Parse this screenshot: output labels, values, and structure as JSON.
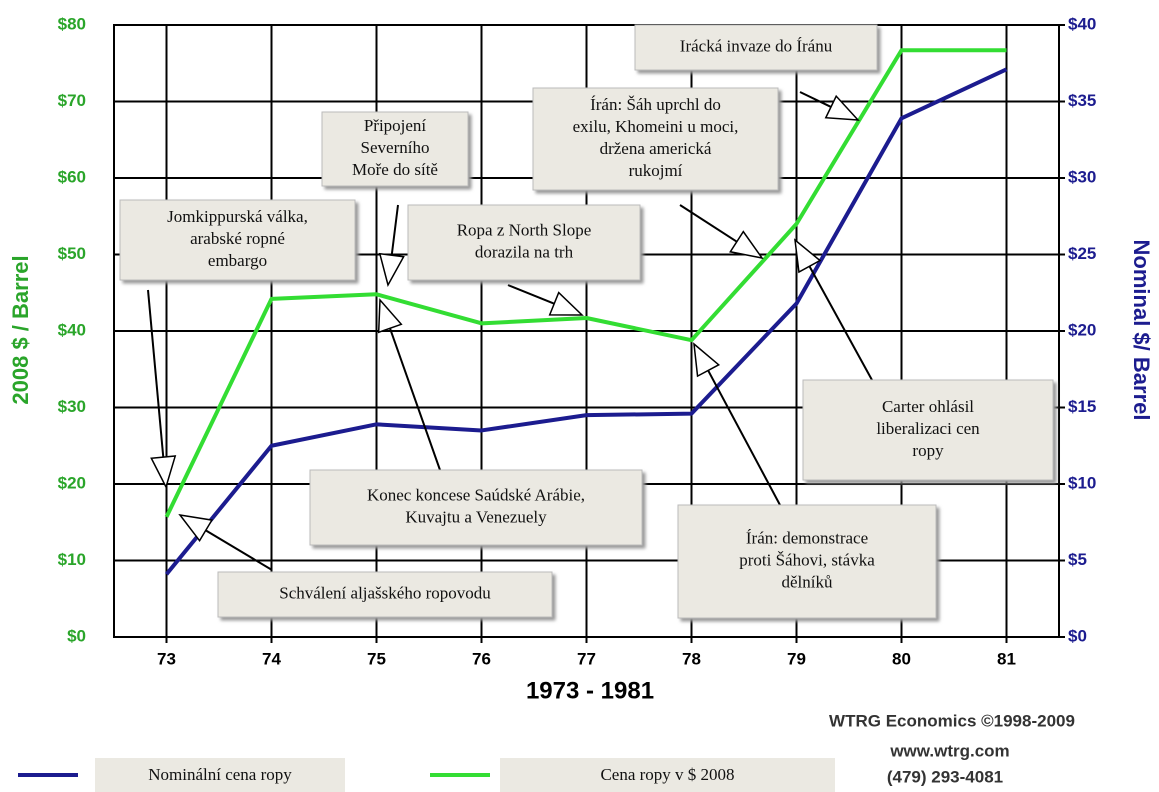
{
  "chart_data": {
    "type": "line",
    "x": [
      73,
      74,
      75,
      76,
      77,
      78,
      79,
      80,
      81
    ],
    "xlim": [
      72.5,
      81.5
    ],
    "xticks": [
      73,
      74,
      75,
      76,
      77,
      78,
      79,
      80,
      81
    ],
    "xlabel": "1973 - 1981",
    "ylabel": "2008 $ / Barrel",
    "y2label": "Nominal $/ Barrel",
    "ylim": [
      0,
      80
    ],
    "yticks": [
      {
        "value": 0,
        "label": "$0"
      },
      {
        "value": 10,
        "label": "$10"
      },
      {
        "value": 20,
        "label": "$20"
      },
      {
        "value": 30,
        "label": "$30"
      },
      {
        "value": 40,
        "label": "$40"
      },
      {
        "value": 50,
        "label": "$50"
      },
      {
        "value": 60,
        "label": "$60"
      },
      {
        "value": 70,
        "label": "$70"
      },
      {
        "value": 80,
        "label": "$80"
      }
    ],
    "y2lim": [
      0,
      40
    ],
    "y2ticks": [
      {
        "value": 0,
        "label": "$0"
      },
      {
        "value": 5,
        "label": "$5"
      },
      {
        "value": 10,
        "label": "$10"
      },
      {
        "value": 15,
        "label": "$15"
      },
      {
        "value": 20,
        "label": "$20"
      },
      {
        "value": 25,
        "label": "$25"
      },
      {
        "value": 30,
        "label": "$30"
      },
      {
        "value": 35,
        "label": "$35"
      },
      {
        "value": 40,
        "label": "$40"
      }
    ],
    "ycolor": "#2aa52a",
    "y2color": "#1c1c8f",
    "grid": true,
    "series": [
      {
        "name": "Nominální cena ropy",
        "color": "#1c1c8f",
        "axis": "y2",
        "values": [
          4.1,
          12.5,
          13.9,
          13.5,
          14.5,
          14.6,
          21.8,
          33.9,
          37.1
        ]
      },
      {
        "name": "Cena ropy v $ 2008",
        "color": "#33dd33",
        "values": [
          15.7,
          44.2,
          44.8,
          41,
          41.7,
          38.8,
          54,
          76.7,
          76.7
        ]
      }
    ],
    "annotations": [
      [
        "Irácká invaze do Íránu"
      ],
      [
        "Írán: Šáh uprchl do",
        "exilu, Khomeini u moci,",
        "držena americká",
        "rukojmí"
      ],
      [
        "Připojení",
        "Severního",
        "Moře do sítě"
      ],
      [
        "Jomkippurská válka,",
        "arabské ropné",
        "embargo"
      ],
      [
        "Ropa z North Slope",
        "dorazila na trh"
      ],
      [
        "Carter ohlásil",
        "liberalizaci cen",
        "ropy"
      ],
      [
        "Konec koncese Saúdské Arábie,",
        "Kuvajtu a Venezuely"
      ],
      [
        "Írán: demonstrace",
        "proti Šáhovi, stávka",
        "dělníků"
      ],
      [
        "Schválení aljašského ropovodu"
      ]
    ],
    "credits": [
      "WTRG Economics  ©1998-2009",
      "www.wtrg.com",
      "(479) 293-4081"
    ]
  }
}
